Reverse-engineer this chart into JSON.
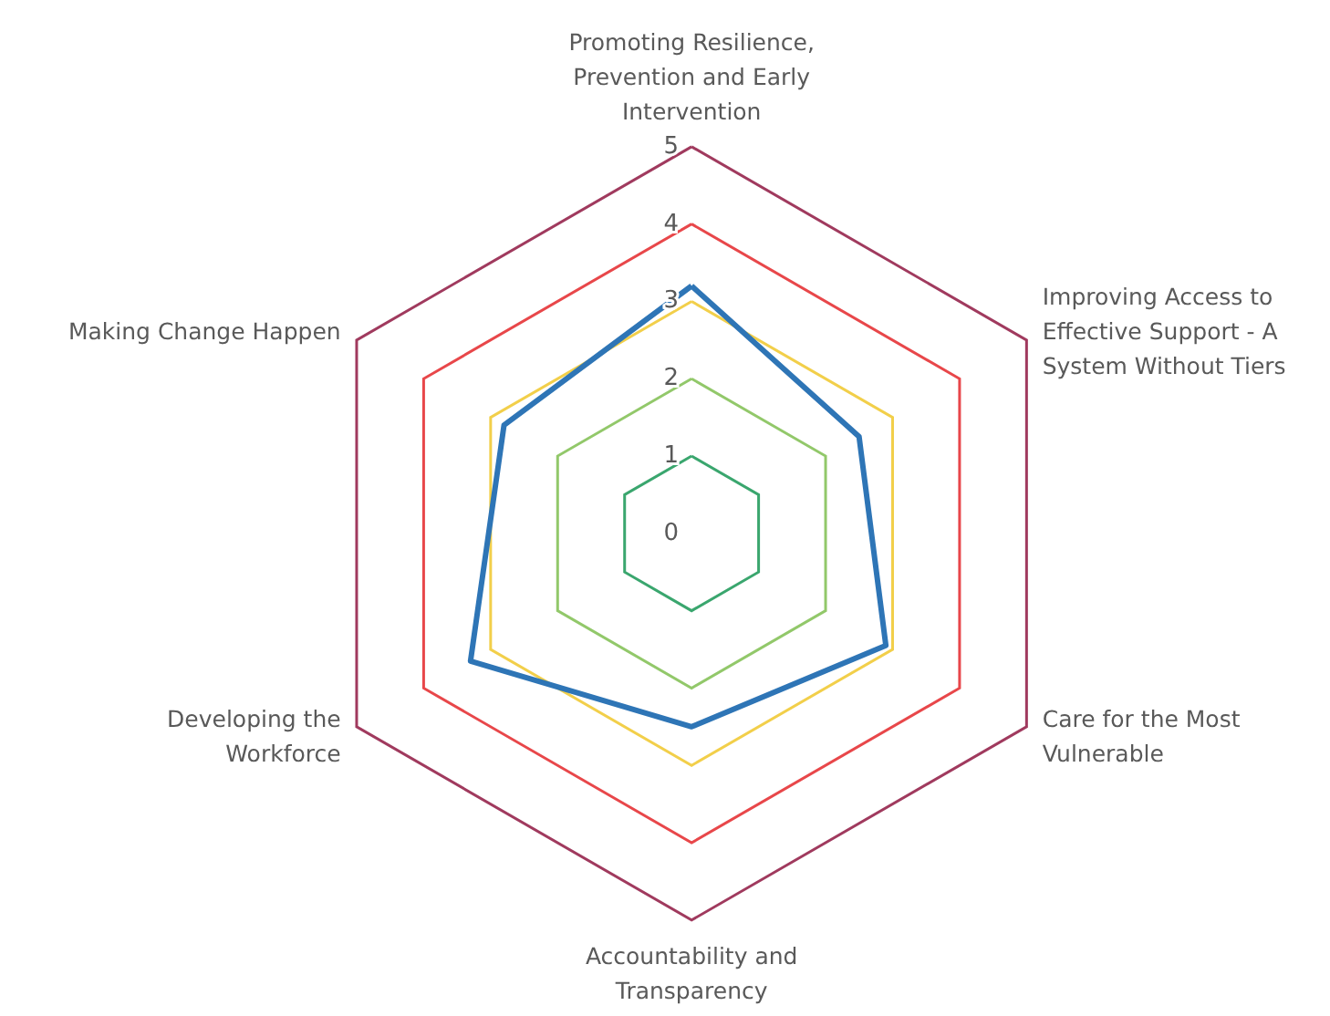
{
  "chart_data": {
    "type": "radar",
    "categories": [
      "Promoting Resilience, Prevention and Early Intervention",
      "Improving Access to Effective Support - A System Without Tiers",
      "Care for the Most Vulnerable",
      "Accountability and Transparency",
      "Developing the Workforce",
      "Making Change Happen"
    ],
    "series": [
      {
        "color": "#2e75b6",
        "values": [
          3.2,
          2.5,
          2.9,
          2.5,
          3.3,
          2.8
        ]
      }
    ],
    "ylim": [
      0,
      5
    ],
    "yticks": [
      0,
      1,
      2,
      3,
      4,
      5
    ],
    "grid": true,
    "marker": "none",
    "line_style": "solid"
  }
}
